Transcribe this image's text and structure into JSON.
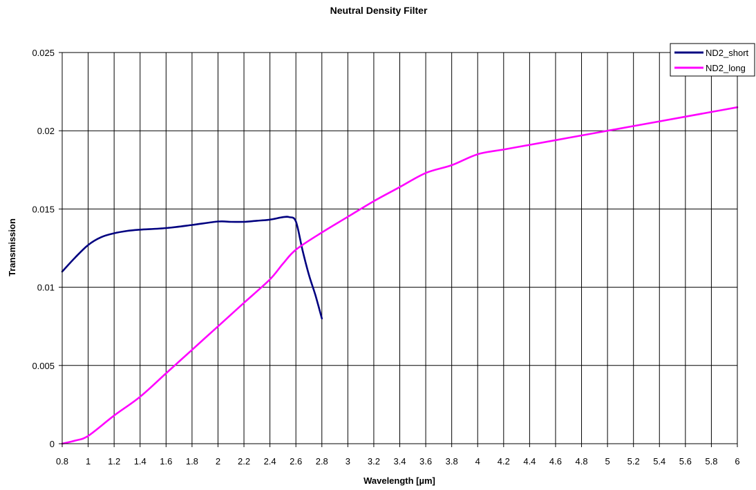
{
  "chart_data": {
    "type": "line",
    "title": "Neutral Density Filter",
    "xlabel": "Wavelength [µm]",
    "ylabel": "Transmission",
    "xlim": [
      0.8,
      6
    ],
    "ylim": [
      0,
      0.025
    ],
    "x_ticks": [
      "0.8",
      "1",
      "1.2",
      "1.4",
      "1.6",
      "1.8",
      "2",
      "2.2",
      "2.4",
      "2.6",
      "2.8",
      "3",
      "3.2",
      "3.4",
      "3.6",
      "3.8",
      "4",
      "4.2",
      "4.4",
      "4.6",
      "4.8",
      "5",
      "5.2",
      "5.4",
      "5.6",
      "5.8",
      "6"
    ],
    "y_ticks": [
      "0",
      "0.005",
      "0.01",
      "0.015",
      "0.02",
      "0.025"
    ],
    "grid": true,
    "legend_position": "top-right",
    "series": [
      {
        "name": "ND2_short",
        "color": "#000080",
        "x": [
          0.8,
          0.9,
          1.0,
          1.1,
          1.2,
          1.3,
          1.4,
          1.6,
          1.8,
          2.0,
          2.1,
          2.2,
          2.3,
          2.4,
          2.5,
          2.55,
          2.6,
          2.65,
          2.7,
          2.75,
          2.8
        ],
        "y": [
          0.011,
          0.0119,
          0.0127,
          0.0132,
          0.01345,
          0.0136,
          0.01368,
          0.01378,
          0.01398,
          0.0142,
          0.01418,
          0.01418,
          0.01425,
          0.01432,
          0.01448,
          0.01448,
          0.0142,
          0.0124,
          0.0108,
          0.0095,
          0.008
        ]
      },
      {
        "name": "ND2_long",
        "color": "#FF00FF",
        "x": [
          0.8,
          0.9,
          1.0,
          1.2,
          1.4,
          1.6,
          1.8,
          2.0,
          2.2,
          2.4,
          2.5,
          2.6,
          2.8,
          3.0,
          3.2,
          3.4,
          3.6,
          3.8,
          4.0,
          4.2,
          4.4,
          4.6,
          4.8,
          5.0,
          5.2,
          5.4,
          5.6,
          5.8,
          6.0
        ],
        "y": [
          0.0,
          0.0002,
          0.0005,
          0.0018,
          0.003,
          0.0045,
          0.006,
          0.0075,
          0.009,
          0.0105,
          0.0115,
          0.0124,
          0.0135,
          0.0145,
          0.0155,
          0.0164,
          0.0173,
          0.0178,
          0.0185,
          0.0188,
          0.0191,
          0.0194,
          0.0197,
          0.02,
          0.0203,
          0.0206,
          0.0209,
          0.0212,
          0.0215
        ]
      }
    ]
  }
}
